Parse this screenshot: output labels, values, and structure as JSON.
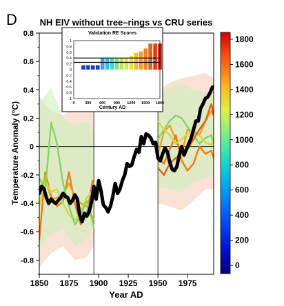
{
  "panel_label": "D",
  "chart_data": [
    {
      "type": "line",
      "title": "NH EIV without tree–rings vs CRU series",
      "xlabel": "Year AD",
      "ylabel": "Temperature Anomaly (°C)",
      "xlim": [
        1850,
        1997
      ],
      "ylim": [
        -0.9,
        0.8
      ],
      "xticks": [
        "1850",
        "1875",
        "1900",
        "1925",
        "1950",
        "1975"
      ],
      "yticks": [
        "0.8",
        "0.6",
        "0.4",
        "0.2",
        "0",
        "-0.2",
        "-0.4",
        "-0.6",
        "-0.8"
      ],
      "reference_lines": {
        "y_zero": 0,
        "verticals": [
          1896,
          1950
        ]
      },
      "cru_series": {
        "color": "#000000",
        "x": [
          1850,
          1852,
          1854,
          1856,
          1858,
          1860,
          1862,
          1864,
          1866,
          1868,
          1870,
          1872,
          1874,
          1876,
          1878,
          1880,
          1882,
          1884,
          1886,
          1888,
          1890,
          1892,
          1894,
          1896,
          1898,
          1900,
          1902,
          1904,
          1906,
          1908,
          1910,
          1912,
          1914,
          1916,
          1918,
          1920,
          1922,
          1924,
          1926,
          1928,
          1930,
          1932,
          1934,
          1936,
          1938,
          1940,
          1942,
          1944,
          1946,
          1948,
          1950,
          1952,
          1954,
          1956,
          1958,
          1960,
          1962,
          1964,
          1966,
          1968,
          1970,
          1972,
          1974,
          1976,
          1978,
          1980,
          1982,
          1984,
          1986,
          1988,
          1990,
          1992,
          1994,
          1996
        ],
        "y": [
          -0.33,
          -0.28,
          -0.3,
          -0.36,
          -0.4,
          -0.37,
          -0.39,
          -0.4,
          -0.38,
          -0.36,
          -0.33,
          -0.35,
          -0.36,
          -0.4,
          -0.38,
          -0.34,
          -0.37,
          -0.48,
          -0.53,
          -0.47,
          -0.49,
          -0.46,
          -0.39,
          -0.28,
          -0.37,
          -0.24,
          -0.31,
          -0.41,
          -0.43,
          -0.46,
          -0.42,
          -0.35,
          -0.26,
          -0.33,
          -0.3,
          -0.24,
          -0.2,
          -0.12,
          -0.14,
          -0.13,
          -0.07,
          -0.02,
          -0.04,
          0.07,
          0.02,
          0.09,
          0.08,
          0.06,
          0.02,
          0.03,
          -0.08,
          -0.1,
          -0.05,
          -0.01,
          -0.04,
          -0.11,
          -0.16,
          -0.17,
          -0.14,
          -0.06,
          0.0,
          -0.06,
          -0.02,
          0.02,
          0.06,
          0.12,
          0.18,
          0.18,
          0.27,
          0.3,
          0.34,
          0.35,
          0.38,
          0.42
        ]
      },
      "reconstruction_series": [
        {
          "color": "#f07a10",
          "x": [
            1850,
            1855,
            1860,
            1865,
            1870,
            1875,
            1880,
            1885,
            1890,
            1895,
            1896
          ],
          "y": [
            -0.66,
            -0.18,
            -0.35,
            -0.42,
            -0.39,
            -0.18,
            -0.4,
            -0.55,
            -0.48,
            -0.24,
            -0.3
          ]
        },
        {
          "color": "#f0a020",
          "x": [
            1850,
            1855,
            1860,
            1865,
            1870,
            1875,
            1880,
            1885,
            1890,
            1895,
            1896
          ],
          "y": [
            -0.34,
            -0.21,
            -0.37,
            -0.36,
            -0.34,
            -0.26,
            -0.35,
            -0.4,
            -0.42,
            -0.5,
            -0.52
          ]
        },
        {
          "color": "#d2d840",
          "x": [
            1850,
            1855,
            1860,
            1865,
            1870,
            1875,
            1880,
            1885,
            1890,
            1895,
            1896
          ],
          "y": [
            -0.42,
            -0.24,
            -0.32,
            -0.3,
            -0.4,
            -0.48,
            -0.52,
            -0.45,
            -0.36,
            -0.32,
            -0.34
          ]
        },
        {
          "color": "#80d860",
          "x": [
            1850,
            1855,
            1860,
            1865,
            1870,
            1875,
            1880,
            1885,
            1890,
            1895,
            1896
          ],
          "y": [
            -0.22,
            -0.31,
            0.17,
            0.02,
            -0.26,
            -0.42,
            -0.55,
            -0.48,
            -0.38,
            -0.53,
            -0.58
          ]
        },
        {
          "color": "#f0a020",
          "x": [
            1950,
            1955,
            1960,
            1965,
            1970,
            1975,
            1980,
            1985,
            1990,
            1995,
            1997
          ],
          "y": [
            -0.05,
            0.1,
            0.15,
            0.05,
            -0.05,
            0.12,
            0.1,
            0.08,
            0.18,
            0.25,
            0.22
          ]
        },
        {
          "color": "#f07a10",
          "x": [
            1950,
            1955,
            1960,
            1965,
            1970,
            1975,
            1980,
            1985,
            1990,
            1995,
            1997
          ],
          "y": [
            -0.08,
            -0.12,
            -0.02,
            0.08,
            -0.1,
            -0.17,
            -0.12,
            0.0,
            -0.05,
            -0.03,
            -0.08
          ]
        },
        {
          "color": "#80d860",
          "x": [
            1950,
            1955,
            1960,
            1965,
            1970,
            1975,
            1980,
            1985,
            1990,
            1995,
            1997
          ],
          "y": [
            0.05,
            0.12,
            0.18,
            0.22,
            0.2,
            0.14,
            0.08,
            0.02,
            0.06,
            0.08,
            0.02
          ]
        },
        {
          "color": "#d2d840",
          "x": [
            1950,
            1955,
            1960,
            1965,
            1970,
            1975,
            1980,
            1985,
            1990,
            1995,
            1997
          ],
          "y": [
            0.18,
            0.12,
            0.08,
            0.02,
            0.05,
            0.09,
            0.12,
            0.08,
            0.03,
            0.01,
            0.04
          ]
        },
        {
          "color": "#e06010",
          "x": [
            1950,
            1955,
            1960,
            1965,
            1970,
            1975,
            1980,
            1985,
            1990,
            1995,
            1997
          ],
          "y": [
            -0.15,
            -0.2,
            -0.12,
            -0.08,
            -0.05,
            -0.02,
            0.05,
            0.12,
            0.18,
            0.3,
            0.22
          ]
        }
      ],
      "uncertainty_bands": [
        {
          "color": "#f4c8b0",
          "x": [
            1850,
            1860,
            1870,
            1880,
            1890,
            1896
          ],
          "low": [
            -0.85,
            -0.75,
            -0.7,
            -0.8,
            -0.78,
            -0.7
          ],
          "high": [
            0.35,
            0.25,
            0.22,
            0.28,
            0.3,
            0.32
          ]
        },
        {
          "color": "#c8f0b8",
          "x": [
            1850,
            1860,
            1870,
            1880,
            1890,
            1896
          ],
          "low": [
            -0.7,
            -0.62,
            -0.58,
            -0.7,
            -0.65,
            -0.55
          ],
          "high": [
            0.3,
            0.42,
            0.2,
            0.15,
            0.18,
            0.1
          ]
        },
        {
          "color": "#f4c8b0",
          "x": [
            1950,
            1960,
            1970,
            1980,
            1990,
            1997
          ],
          "low": [
            -0.4,
            -0.42,
            -0.45,
            -0.38,
            -0.3,
            -0.3
          ],
          "high": [
            0.4,
            0.45,
            0.48,
            0.5,
            0.52,
            0.48
          ]
        },
        {
          "color": "#c8f0b8",
          "x": [
            1950,
            1960,
            1970,
            1980,
            1990,
            1997
          ],
          "low": [
            -0.28,
            -0.3,
            -0.32,
            -0.25,
            -0.22,
            -0.2
          ],
          "high": [
            0.36,
            0.42,
            0.44,
            0.4,
            0.38,
            0.35
          ]
        }
      ]
    },
    {
      "type": "bar",
      "title": "Validation RE Scores",
      "xlabel": "Century AD",
      "xticks": [
        "0",
        "300",
        "600",
        "900",
        "1200",
        "1500",
        "1800"
      ],
      "yticks": [
        "1",
        "0.8",
        "0.6",
        "0.4",
        "0.2",
        "0",
        "-0.2",
        "-0.4",
        "-0.6",
        "-0.8",
        "-1"
      ],
      "ylim": [
        -1,
        1
      ],
      "reference_lines": [
        0.25,
        0.4
      ],
      "x": [
        200,
        300,
        400,
        500,
        600,
        700,
        800,
        900,
        1000,
        1100,
        1200,
        1300,
        1400,
        1500,
        1600,
        1700,
        1800
      ],
      "values": [
        0.15,
        0.15,
        0.15,
        0.15,
        0.4,
        0.4,
        0.4,
        0.4,
        0.4,
        0.4,
        0.48,
        0.58,
        0.63,
        0.73,
        0.9,
        0.9,
        0.9
      ],
      "colors": [
        "#203cc8",
        "#203cc8",
        "#203cc8",
        "#203cc8",
        "#3ca0f0",
        "#20c8e0",
        "#40d8c0",
        "#80e090",
        "#b8e860",
        "#d8e840",
        "#f0e030",
        "#f0c030",
        "#f0a028",
        "#f08020",
        "#e86018",
        "#e04010",
        "#d42010"
      ]
    },
    {
      "type": "heatmap",
      "colorbar_ticks": [
        "1800",
        "1600",
        "1400",
        "1200",
        "1000",
        "800",
        "600",
        "400",
        "200",
        "0"
      ]
    }
  ]
}
